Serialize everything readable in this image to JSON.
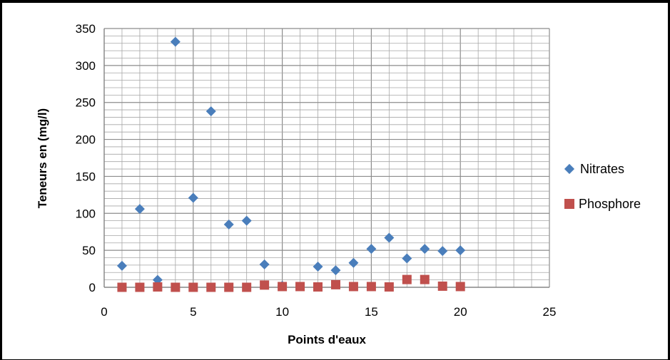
{
  "chart_data": {
    "type": "scatter",
    "xlabel": "Points d'eaux",
    "ylabel": "Teneurs en (mg/l)",
    "xlim": [
      0,
      25
    ],
    "ylim": [
      0,
      350
    ],
    "x_ticks": [
      "0",
      "5",
      "10",
      "15",
      "20",
      "25"
    ],
    "y_ticks": [
      "0",
      "50",
      "100",
      "150",
      "200",
      "250",
      "300",
      "350"
    ],
    "grid": true,
    "legend_position": "right",
    "colors": {
      "Nitrates": "#4a7ebb",
      "Phosphore": "#c0504d",
      "grid": "#a6a6a6",
      "major_grid": "#8c8c8c"
    },
    "series": [
      {
        "name": "Nitrates",
        "marker": "diamond",
        "x": [
          1,
          2,
          3,
          4,
          5,
          6,
          7,
          8,
          9,
          10,
          12,
          13,
          14,
          15,
          16,
          17,
          18,
          19,
          20
        ],
        "y": [
          29,
          106,
          10,
          332,
          121,
          238,
          85,
          90,
          31,
          2,
          28,
          23,
          33,
          52,
          67,
          39,
          52,
          49,
          50
        ]
      },
      {
        "name": "Phosphore",
        "marker": "square",
        "x": [
          1,
          2,
          3,
          4,
          5,
          6,
          7,
          8,
          9,
          10,
          11,
          12,
          13,
          14,
          15,
          16,
          17,
          18,
          19,
          20
        ],
        "y": [
          0,
          0,
          0.5,
          0,
          0,
          0,
          0,
          0,
          3,
          1,
          1,
          0.5,
          3.5,
          1,
          1,
          0.5,
          10.5,
          10.5,
          1.5,
          1
        ]
      }
    ]
  }
}
